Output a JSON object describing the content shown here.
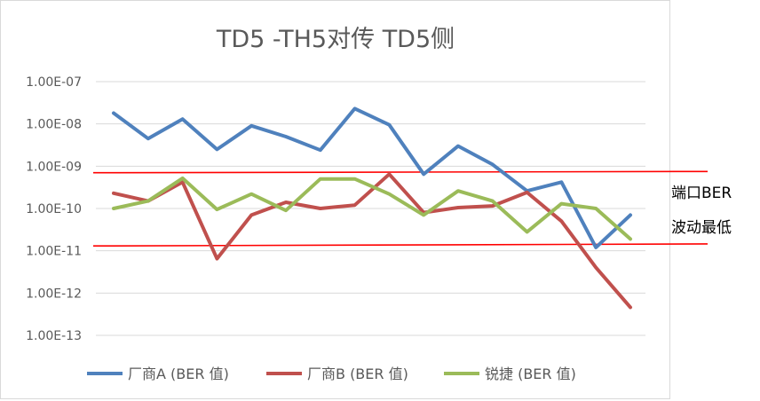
{
  "chart_data": {
    "type": "line",
    "title": "TD5 -TH5对传 TD5侧",
    "xlabel": "",
    "ylabel": "",
    "y_scale": "log",
    "ylim": [
      1e-13,
      1e-07
    ],
    "y_ticks": [
      "1.00E-07",
      "1.00E-08",
      "1.00E-09",
      "1.00E-10",
      "1.00E-11",
      "1.00E-12",
      "1.00E-13"
    ],
    "grid": true,
    "legend_position": "bottom",
    "series": [
      {
        "name": "厂商A (BER 值)",
        "color": "#4f81bd",
        "values": [
          1.8e-08,
          4.5e-09,
          1.3e-08,
          2.5e-09,
          9e-09,
          5e-09,
          2.4e-09,
          2.3e-08,
          9.5e-09,
          6.5e-10,
          3e-09,
          1.1e-09,
          2.6e-10,
          4.2e-10,
          1.2e-11,
          7e-11
        ]
      },
      {
        "name": "厂商B (BER 值)",
        "color": "#c0504d",
        "values": [
          2.3e-10,
          1.5e-10,
          4.2e-10,
          6.5e-12,
          7e-11,
          1.4e-10,
          1e-10,
          1.2e-10,
          6.5e-10,
          8e-11,
          1.05e-10,
          1.15e-10,
          2.4e-10,
          5e-11,
          4e-12,
          4.6e-13
        ]
      },
      {
        "name": "锐捷 (BER 值)",
        "color": "#9bbb59",
        "values": [
          1e-10,
          1.5e-10,
          5.2e-10,
          9.5e-11,
          2.2e-10,
          9e-11,
          5e-10,
          5e-10,
          2.2e-10,
          7e-11,
          2.6e-10,
          1.5e-10,
          2.8e-11,
          1.3e-10,
          1e-10,
          1.9e-11
        ]
      }
    ],
    "annotations": {
      "upper_line": {
        "color": "#ff0000",
        "value_left": 7e-10,
        "value_right": 7.5e-10
      },
      "lower_line": {
        "color": "#ff0000",
        "value_left": 1.3e-11,
        "value_right": 1.45e-11
      },
      "label_line1": "端口BER",
      "label_line2": "波动最低"
    }
  }
}
